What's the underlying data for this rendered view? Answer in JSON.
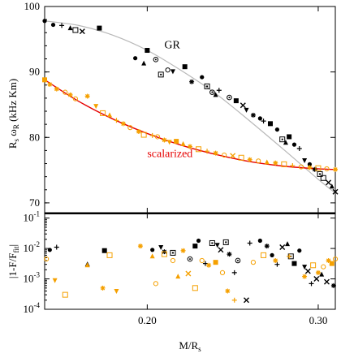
{
  "colors": {
    "gr_points": "#000000",
    "scalarized_points": "#f5a000",
    "gr_fit": "#b8b8b8",
    "scalarized_fit": "#e60000",
    "scalarized_label": "#e60000",
    "gr_label": "#000000"
  },
  "chart_data": [
    {
      "type": "scatter",
      "panel": "top",
      "ylabel": "R_s ω_R (kHz Km)",
      "xlim": [
        0.14,
        0.31
      ],
      "ylim": [
        68.5,
        100
      ],
      "yticks": [
        70,
        80,
        90,
        100
      ],
      "xticks": [
        0.2,
        0.3
      ],
      "grid": false,
      "annotations": [
        {
          "text": "GR",
          "x": 0.21,
          "y": 93.6,
          "color": "#000000"
        },
        {
          "text": "scalarized",
          "x": 0.2,
          "y": 77.0,
          "color": "#e60000"
        }
      ],
      "fit_curves": [
        {
          "name": "GR",
          "color": "#b8b8b8",
          "x": [
            0.14,
            0.16,
            0.18,
            0.2,
            0.22,
            0.24,
            0.26,
            0.28,
            0.3,
            0.31
          ],
          "y": [
            97.8,
            97.1,
            95.6,
            93.3,
            90.2,
            86.7,
            82.5,
            78.1,
            73.6,
            71.5
          ]
        },
        {
          "name": "scalarized",
          "color": "#e60000",
          "x": [
            0.14,
            0.16,
            0.18,
            0.2,
            0.22,
            0.24,
            0.26,
            0.28,
            0.3,
            0.31
          ],
          "y": [
            88.8,
            85.5,
            82.8,
            80.6,
            78.8,
            77.4,
            76.3,
            75.6,
            75.2,
            75.1
          ]
        }
      ],
      "series": [
        {
          "name": "GR",
          "color": "#000000",
          "points": [
            [
              0.14,
              97.8,
              "circle"
            ],
            [
              0.145,
              97.2,
              "circle"
            ],
            [
              0.15,
              97.1,
              "plus"
            ],
            [
              0.155,
              96.7,
              "triangle"
            ],
            [
              0.158,
              96.4,
              "square-open"
            ],
            [
              0.162,
              96.2,
              "x"
            ],
            [
              0.172,
              96.7,
              "square"
            ],
            [
              0.193,
              92.1,
              "circle"
            ],
            [
              0.198,
              91.3,
              "triangle"
            ],
            [
              0.2,
              93.3,
              "square"
            ],
            [
              0.205,
              91.9,
              "circle-dot"
            ],
            [
              0.208,
              89.6,
              "square-dot"
            ],
            [
              0.212,
              90.3,
              "circle-open"
            ],
            [
              0.215,
              90.1,
              "triangle-down"
            ],
            [
              0.222,
              90.8,
              "square"
            ],
            [
              0.226,
              88.5,
              "star"
            ],
            [
              0.232,
              89.2,
              "circle"
            ],
            [
              0.235,
              87.8,
              "square-dot"
            ],
            [
              0.238,
              86.9,
              "circle-dot"
            ],
            [
              0.24,
              86.5,
              "triangle"
            ],
            [
              0.242,
              87.2,
              "plus"
            ],
            [
              0.248,
              86.1,
              "circle-dot"
            ],
            [
              0.252,
              85.6,
              "square"
            ],
            [
              0.256,
              84.9,
              "x"
            ],
            [
              0.258,
              84.2,
              "triangle-down"
            ],
            [
              0.262,
              83.4,
              "star"
            ],
            [
              0.266,
              82.9,
              "circle"
            ],
            [
              0.268,
              82.5,
              "plus"
            ],
            [
              0.272,
              82.1,
              "square"
            ],
            [
              0.276,
              81.2,
              "circle"
            ],
            [
              0.279,
              79.7,
              "square-dot"
            ],
            [
              0.281,
              79.2,
              "triangle"
            ],
            [
              0.283,
              80.1,
              "square"
            ],
            [
              0.286,
              78.9,
              "circle"
            ],
            [
              0.289,
              78.3,
              "plus"
            ],
            [
              0.292,
              76.5,
              "triangle-down"
            ],
            [
              0.295,
              75.9,
              "circle"
            ],
            [
              0.298,
              75.1,
              "star"
            ],
            [
              0.301,
              74.4,
              "square-dot"
            ],
            [
              0.303,
              73.8,
              "square-open"
            ],
            [
              0.306,
              73.1,
              "x"
            ],
            [
              0.308,
              72.5,
              "triangle"
            ],
            [
              0.31,
              71.7,
              "x"
            ]
          ]
        },
        {
          "name": "scalarized",
          "color": "#f5a000",
          "points": [
            [
              0.14,
              88.8,
              "square"
            ],
            [
              0.143,
              88.1,
              "star"
            ],
            [
              0.147,
              87.4,
              "star"
            ],
            [
              0.152,
              86.9,
              "circle-open"
            ],
            [
              0.155,
              86.5,
              "star"
            ],
            [
              0.158,
              85.9,
              "circle-open"
            ],
            [
              0.165,
              86.3,
              "star"
            ],
            [
              0.17,
              84.8,
              "triangle-down"
            ],
            [
              0.174,
              83.7,
              "square-open"
            ],
            [
              0.178,
              83.4,
              "triangle"
            ],
            [
              0.182,
              82.6,
              "plus"
            ],
            [
              0.186,
              82.1,
              "star"
            ],
            [
              0.19,
              81.5,
              "circle-open"
            ],
            [
              0.195,
              80.9,
              "star"
            ],
            [
              0.198,
              80.4,
              "square-open"
            ],
            [
              0.203,
              80.3,
              "plus"
            ],
            [
              0.206,
              80.1,
              "circle-open"
            ],
            [
              0.21,
              79.6,
              "star"
            ],
            [
              0.213,
              79.3,
              "triangle-down"
            ],
            [
              0.217,
              79.4,
              "square"
            ],
            [
              0.221,
              79.0,
              "triangle"
            ],
            [
              0.225,
              78.6,
              "star"
            ],
            [
              0.23,
              78.2,
              "square-open"
            ],
            [
              0.235,
              77.9,
              "plus"
            ],
            [
              0.24,
              77.6,
              "star"
            ],
            [
              0.245,
              77.3,
              "circle-open"
            ],
            [
              0.25,
              77.2,
              "x"
            ],
            [
              0.255,
              76.9,
              "square-open"
            ],
            [
              0.26,
              76.6,
              "star"
            ],
            [
              0.265,
              76.4,
              "circle-open"
            ],
            [
              0.27,
              76.2,
              "triangle"
            ],
            [
              0.275,
              76.1,
              "star"
            ],
            [
              0.28,
              75.9,
              "square-open"
            ],
            [
              0.285,
              75.7,
              "plus"
            ],
            [
              0.29,
              75.5,
              "circle-open"
            ],
            [
              0.295,
              75.4,
              "star"
            ],
            [
              0.3,
              75.3,
              "square-open"
            ],
            [
              0.305,
              75.2,
              "circle-open"
            ],
            [
              0.31,
              75.1,
              "star"
            ]
          ]
        }
      ]
    },
    {
      "type": "scatter",
      "panel": "bottom",
      "ylabel": "|1-F/F_fit|",
      "xlabel": "M/R_s",
      "xlim": [
        0.14,
        0.31
      ],
      "ylim_log10": [
        -4,
        -0.85
      ],
      "yticks": [
        "10^-1",
        "10^-2",
        "10^-3",
        "10^-4"
      ],
      "xticks": [
        0.2,
        0.3
      ],
      "log_y": true,
      "grid": false,
      "series": [
        {
          "name": "GR",
          "color": "#000000",
          "points": [
            [
              0.143,
              0.009,
              "circle"
            ],
            [
              0.147,
              0.011,
              "plus"
            ],
            [
              0.165,
              0.003,
              "triangle"
            ],
            [
              0.175,
              0.0085,
              "square"
            ],
            [
              0.203,
              0.009,
              "circle"
            ],
            [
              0.208,
              0.011,
              "triangle-down"
            ],
            [
              0.21,
              0.0078,
              "star"
            ],
            [
              0.215,
              0.0072,
              "square-dot"
            ],
            [
              0.225,
              0.0045,
              "circle-dot"
            ],
            [
              0.228,
              0.012,
              "square"
            ],
            [
              0.23,
              0.018,
              "circle"
            ],
            [
              0.234,
              0.0032,
              "plus"
            ],
            [
              0.238,
              0.015,
              "square-dot"
            ],
            [
              0.241,
              0.013,
              "triangle-down"
            ],
            [
              0.243,
              0.009,
              "x"
            ],
            [
              0.246,
              0.016,
              "square-dot"
            ],
            [
              0.248,
              0.0065,
              "star"
            ],
            [
              0.251,
              0.0016,
              "plus"
            ],
            [
              0.253,
              0.004,
              "circle-dot"
            ],
            [
              0.258,
              0.0002,
              "x"
            ],
            [
              0.26,
              0.015,
              "plus"
            ],
            [
              0.266,
              0.018,
              "circle"
            ],
            [
              0.27,
              0.012,
              "star"
            ],
            [
              0.273,
              0.006,
              "circle"
            ],
            [
              0.276,
              0.003,
              "plus"
            ],
            [
              0.279,
              0.011,
              "x"
            ],
            [
              0.282,
              0.014,
              "triangle"
            ],
            [
              0.284,
              0.0055,
              "square-dot"
            ],
            [
              0.286,
              0.0032,
              "square"
            ],
            [
              0.289,
              0.0085,
              "circle"
            ],
            [
              0.292,
              0.0025,
              "triangle-down"
            ],
            [
              0.294,
              0.0018,
              "x"
            ],
            [
              0.296,
              0.0007,
              "plus"
            ],
            [
              0.299,
              0.001,
              "x"
            ],
            [
              0.302,
              0.0014,
              "triangle"
            ],
            [
              0.305,
              0.0008,
              "x"
            ],
            [
              0.309,
              0.0006,
              "star"
            ]
          ]
        },
        {
          "name": "scalarized",
          "color": "#f5a000",
          "points": [
            [
              0.141,
              0.0045,
              "circle-open"
            ],
            [
              0.146,
              0.0009,
              "triangle-down"
            ],
            [
              0.152,
              0.0003,
              "square-open"
            ],
            [
              0.165,
              0.0028,
              "triangle"
            ],
            [
              0.174,
              0.0005,
              "star"
            ],
            [
              0.178,
              0.006,
              "square-open"
            ],
            [
              0.182,
              0.0004,
              "triangle-down"
            ],
            [
              0.196,
              0.012,
              "star"
            ],
            [
              0.203,
              0.0055,
              "triangle"
            ],
            [
              0.205,
              0.0007,
              "circle-open"
            ],
            [
              0.21,
              0.0065,
              "square-open"
            ],
            [
              0.215,
              0.004,
              "circle-open"
            ],
            [
              0.218,
              0.0012,
              "triangle"
            ],
            [
              0.221,
              0.0085,
              "star"
            ],
            [
              0.224,
              0.0015,
              "x"
            ],
            [
              0.228,
              0.0005,
              "square-open"
            ],
            [
              0.232,
              0.004,
              "circle-open"
            ],
            [
              0.236,
              0.0028,
              "star"
            ],
            [
              0.24,
              0.0035,
              "square"
            ],
            [
              0.244,
              0.0016,
              "circle-open"
            ],
            [
              0.247,
              0.0004,
              "star"
            ],
            [
              0.251,
              0.0002,
              "plus"
            ],
            [
              0.262,
              0.0035,
              "circle-open"
            ],
            [
              0.268,
              0.006,
              "square-open"
            ],
            [
              0.275,
              0.004,
              "star"
            ],
            [
              0.283,
              0.0055,
              "plus"
            ],
            [
              0.292,
              0.0012,
              "star"
            ],
            [
              0.297,
              0.0028,
              "square-open"
            ],
            [
              0.3,
              0.0016,
              "star"
            ],
            [
              0.303,
              0.0025,
              "circle-open"
            ],
            [
              0.306,
              0.004,
              "star"
            ],
            [
              0.308,
              0.0032,
              "square"
            ],
            [
              0.31,
              0.0045,
              "circle-open"
            ]
          ]
        }
      ]
    }
  ]
}
